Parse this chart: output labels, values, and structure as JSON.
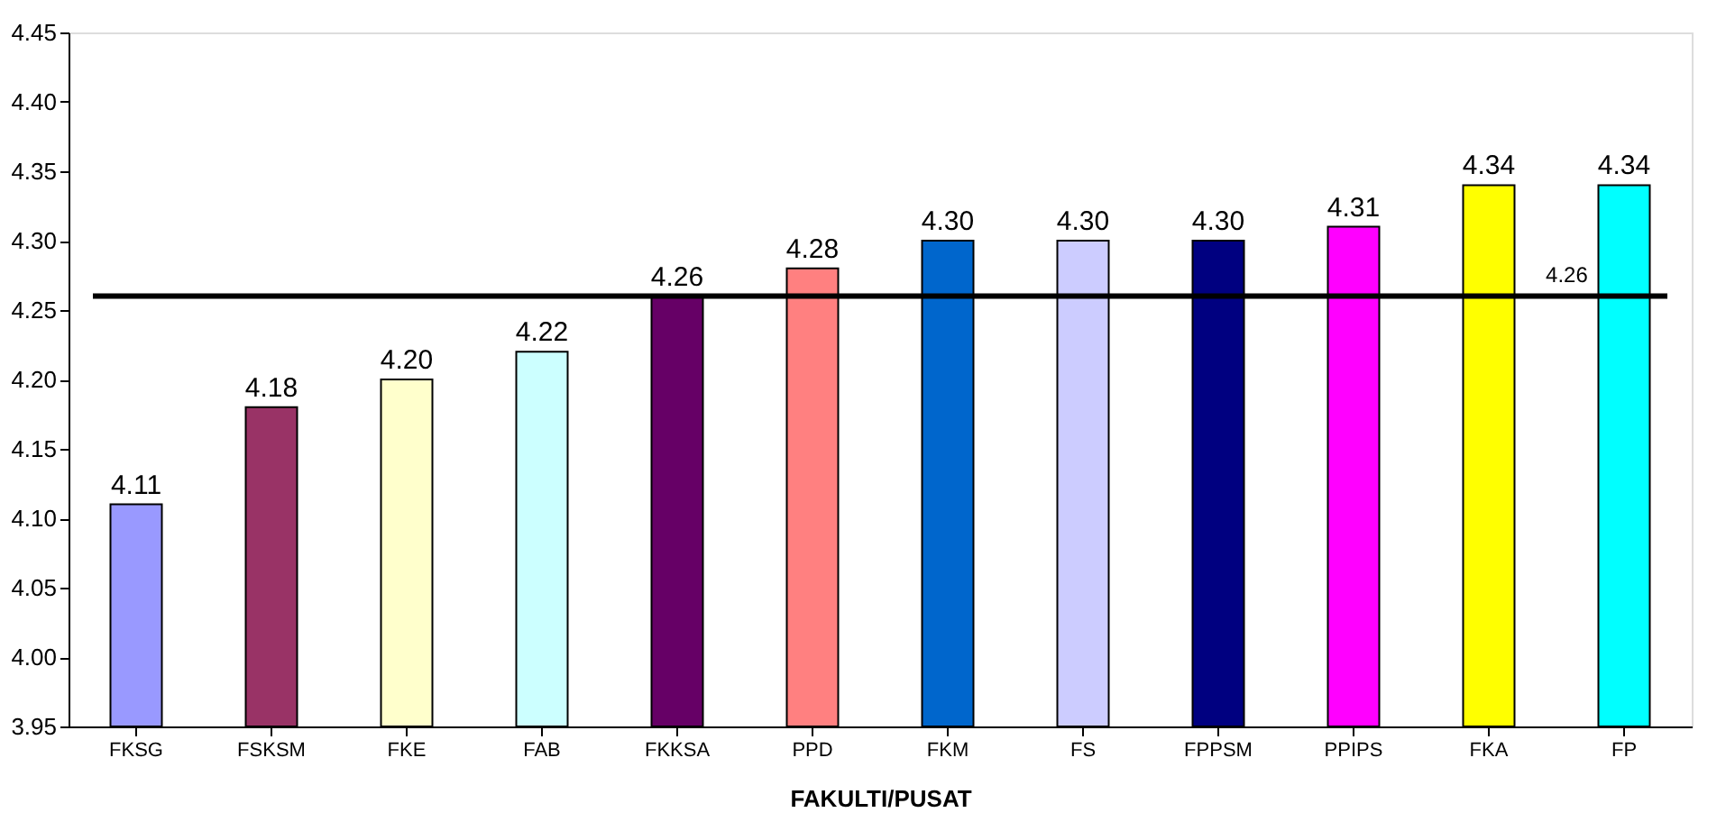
{
  "chart_data": {
    "type": "bar",
    "xlabel": "FAKULTI/PUSAT",
    "categories": [
      "FKSG",
      "FSKSM",
      "FKE",
      "FAB",
      "FKKSA",
      "PPD",
      "FKM",
      "FS",
      "FPPSM",
      "PPIPS",
      "FKA",
      "FP"
    ],
    "values": [
      4.11,
      4.18,
      4.2,
      4.22,
      4.26,
      4.28,
      4.3,
      4.3,
      4.3,
      4.31,
      4.34,
      4.34
    ],
    "value_labels": [
      "4.11",
      "4.18",
      "4.20",
      "4.22",
      "4.26",
      "4.28",
      "4.30",
      "4.30",
      "4.30",
      "4.31",
      "4.34",
      "4.34"
    ],
    "colors": [
      "#9999ff",
      "#993366",
      "#ffffcc",
      "#ccffff",
      "#660066",
      "#ff8080",
      "#0066cc",
      "#ccccff",
      "#000080",
      "#ff00ff",
      "#ffff00",
      "#00ffff"
    ],
    "ylim": [
      3.95,
      4.45
    ],
    "yticks": [
      3.95,
      {
        "value": 4.0,
        "label": "4.00"
      },
      4.05,
      {
        "value": 4.1,
        "label": "4.10"
      },
      4.15,
      {
        "value": 4.2,
        "label": "4.20"
      },
      4.25,
      {
        "value": 4.3,
        "label": "4.30"
      },
      4.35,
      {
        "value": 4.4,
        "label": "4.40"
      },
      4.45
    ],
    "ref_lines": [
      {
        "axis": "y",
        "value": 4.26,
        "label": "4.26",
        "color": "#000000"
      }
    ],
    "grid": false,
    "legend": false
  }
}
